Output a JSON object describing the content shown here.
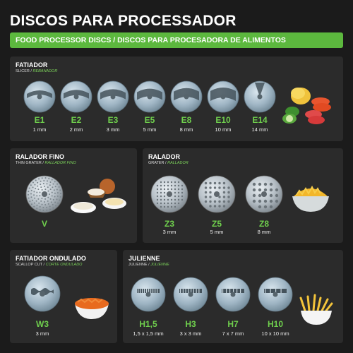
{
  "header": {
    "title": "DISCOS PARA PROCESSADOR",
    "subtitle": "FOOD PROCESSOR DISCS  / DISCOS PARA PROCESADORA DE ALIMENTOS"
  },
  "sections": {
    "fatiador": {
      "title": "FATIADOR",
      "sub_en": "SLICER /",
      "sub_es": "REBANADOR",
      "discs": [
        {
          "code": "E1",
          "size": "1 mm"
        },
        {
          "code": "E2",
          "size": "2 mm"
        },
        {
          "code": "E3",
          "size": "3 mm"
        },
        {
          "code": "E5",
          "size": "5 mm"
        },
        {
          "code": "E8",
          "size": "8 mm"
        },
        {
          "code": "E10",
          "size": "10 mm"
        },
        {
          "code": "E14",
          "size": "14 mm"
        }
      ]
    },
    "ralador_fino": {
      "title": "RALADOR FINO",
      "sub_en": "THIN GRATER /",
      "sub_es": "RALLADOR FINO",
      "discs": [
        {
          "code": "V",
          "size": ""
        }
      ]
    },
    "ralador": {
      "title": "RALADOR",
      "sub_en": "GRATER /",
      "sub_es": "RALLADOR",
      "discs": [
        {
          "code": "Z3",
          "size": "3 mm"
        },
        {
          "code": "Z5",
          "size": "5 mm"
        },
        {
          "code": "Z8",
          "size": "8 mm"
        }
      ]
    },
    "fatiador_ondulado": {
      "title": "FATIADOR ONDULADO",
      "sub_en": "SCALLOP CUT /",
      "sub_es": "CORTE ONDULADO",
      "discs": [
        {
          "code": "W3",
          "size": "3 mm"
        }
      ]
    },
    "julienne": {
      "title": "JULIENNE",
      "sub_en": "JULIENNE /",
      "sub_es": "JULIENNE",
      "discs": [
        {
          "code": "H1,5",
          "size": "1,5 x 1,5 mm"
        },
        {
          "code": "H3",
          "size": "3 x 3 mm"
        },
        {
          "code": "H7",
          "size": "7 x 7 mm"
        },
        {
          "code": "H10",
          "size": "10 x 10 mm"
        }
      ]
    }
  },
  "colors": {
    "accent": "#5cb83e",
    "code": "#6fcf4d",
    "panel": "#2b2b2b",
    "background": "#1b1b1b"
  }
}
